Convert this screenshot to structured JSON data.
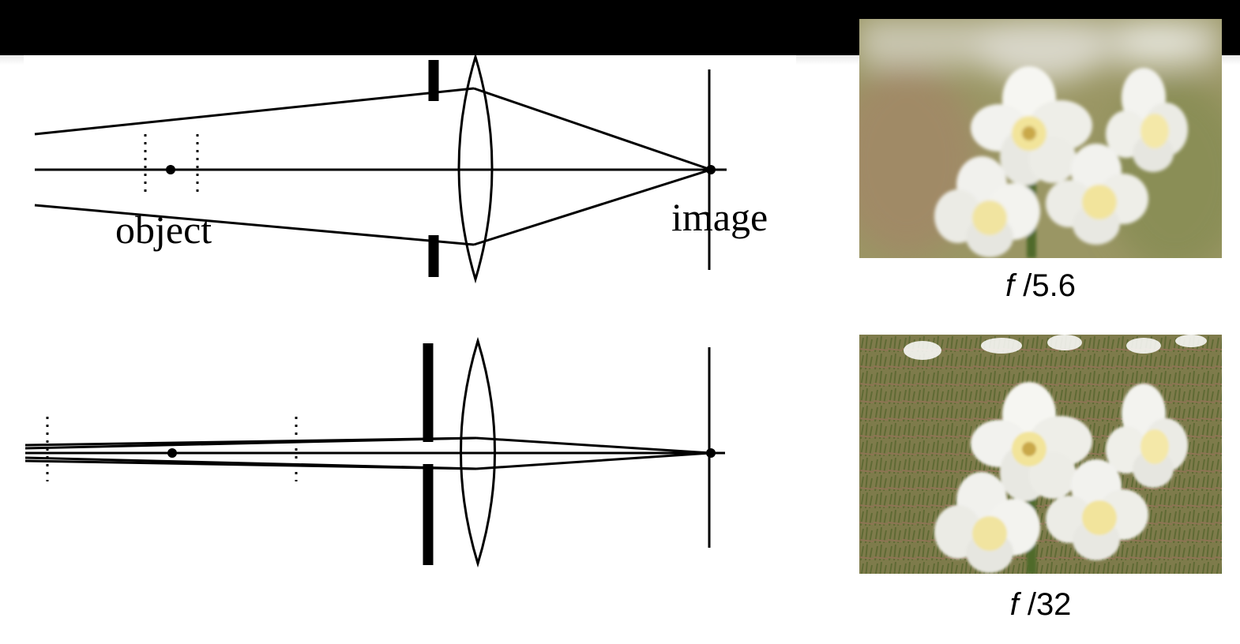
{
  "diagram": {
    "object_label": "object",
    "image_label": "image"
  },
  "photos": [
    {
      "name": "wide-aperture",
      "caption_f": "f",
      "caption_slash": "/",
      "caption_value": "5.6",
      "background_color": "#9a9664",
      "flower_color": "#f4f4f0",
      "center_color": "#f5eaa6"
    },
    {
      "name": "narrow-aperture",
      "caption_f": "f",
      "caption_slash": "/",
      "caption_value": "32",
      "background_color": "#7c7a4c",
      "flower_color": "#f4f4f0",
      "center_color": "#f5eaa6"
    }
  ]
}
